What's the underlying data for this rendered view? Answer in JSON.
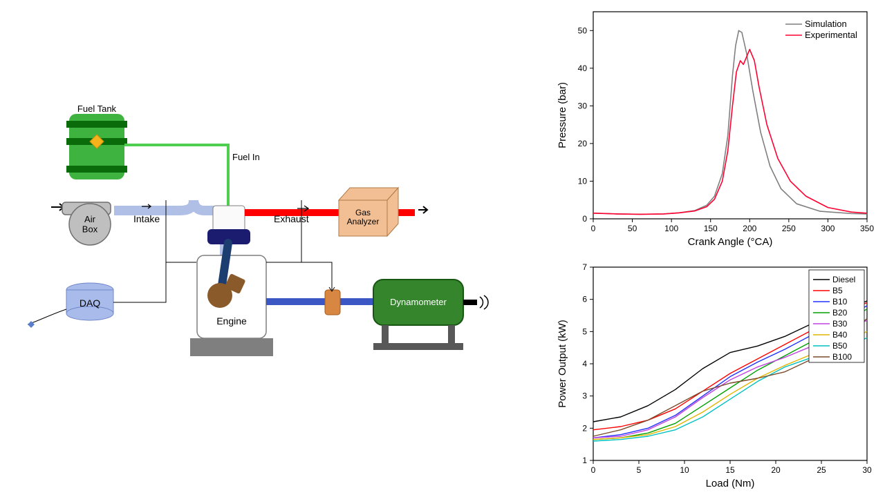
{
  "schematic": {
    "labels": {
      "fuel_tank": "Fuel Tank",
      "fuel_in": "Fuel In",
      "intake": "Intake",
      "exhaust": "Exhaust",
      "air_box": "Air\nBox",
      "gas_analyzer": "Gas\nAnalyzer",
      "daq": "DAQ",
      "engine": "Engine",
      "dynamometer": "Dynamometer"
    },
    "colors": {
      "fuel_tank_body": "#3fb33f",
      "fuel_tank_band": "#0a6b0a",
      "fuel_diamond": "#f5b21a",
      "fuel_line": "#4fcf4f",
      "intake_pipe": "#b0bfe6",
      "intake_pipe_border": "#7f8fbf",
      "exhaust_pipe": "#ff0000",
      "air_box": "#bfbfbf",
      "air_box_stroke": "#6f6f6f",
      "gas_analyzer": "#f2bf94",
      "gas_analyzer_stroke": "#b07a46",
      "daq": "#a9bbea",
      "daq_stroke": "#6f85c9",
      "engine_body": "#ffffff",
      "engine_stroke": "#7f7f7f",
      "engine_head": "#1b1b70",
      "piston_rod": "#1b3d70",
      "piston_crank": "#8a5a2a",
      "engine_base": "#7f7f7f",
      "drive_shaft": "#3b57c4",
      "coupling": "#d78742",
      "dyno_body": "#34852b",
      "dyno_stroke": "#175612",
      "dyno_stand": "#585858",
      "thin_wire": "#000000",
      "sensor_diamond": "#5a7dce"
    },
    "label_fontsize": 14
  },
  "pressure_chart": {
    "type": "line",
    "xlabel": "Crank Angle (°CA)",
    "ylabel": "Pressure (bar)",
    "label_fontsize": 15,
    "tick_fontsize": 12,
    "xlim": [
      0,
      350
    ],
    "ylim": [
      0,
      55
    ],
    "xticks": [
      0,
      50,
      100,
      150,
      200,
      250,
      300,
      350
    ],
    "yticks": [
      0,
      10,
      20,
      30,
      40,
      50
    ],
    "axis_color": "#000000",
    "background": "#ffffff",
    "legend_pos": "top-right",
    "legend_fontsize": 13,
    "series": [
      {
        "name": "Simulation",
        "color": "#7f7f7f",
        "width": 1.6,
        "x": [
          0,
          30,
          60,
          90,
          110,
          130,
          145,
          155,
          165,
          172,
          178,
          182,
          186,
          190,
          196,
          204,
          214,
          226,
          240,
          260,
          290,
          330,
          350
        ],
        "y": [
          1.5,
          1.3,
          1.2,
          1.3,
          1.6,
          2.2,
          3.6,
          6.0,
          12,
          22,
          38,
          46,
          50,
          49.5,
          44,
          34,
          23,
          14,
          8,
          4,
          2,
          1.4,
          1.3
        ]
      },
      {
        "name": "Experimental",
        "color": "#ff0030",
        "width": 1.6,
        "x": [
          0,
          30,
          60,
          90,
          110,
          130,
          145,
          155,
          165,
          172,
          178,
          183,
          188,
          192,
          196,
          200,
          206,
          212,
          222,
          236,
          252,
          272,
          300,
          330,
          350
        ],
        "y": [
          1.5,
          1.3,
          1.2,
          1.3,
          1.6,
          2.1,
          3.2,
          5.2,
          10,
          18,
          30,
          39,
          42,
          41,
          43,
          45,
          42,
          35,
          25,
          16,
          10,
          6,
          3,
          1.8,
          1.5
        ]
      }
    ]
  },
  "power_chart": {
    "type": "line",
    "xlabel": "Load (Nm)",
    "ylabel": "Power Output (kW)",
    "label_fontsize": 15,
    "tick_fontsize": 12,
    "xlim": [
      0,
      30
    ],
    "ylim": [
      1,
      7
    ],
    "xticks": [
      0,
      5,
      10,
      15,
      20,
      25,
      30
    ],
    "yticks": [
      1,
      2,
      3,
      4,
      5,
      6,
      7
    ],
    "axis_color": "#000000",
    "background": "#ffffff",
    "legend_pos": "top-right",
    "legend_fontsize": 12,
    "legend_border": "#000000",
    "series": [
      {
        "name": "Diesel",
        "color": "#000000",
        "width": 1.4,
        "x": [
          0,
          3,
          6,
          9,
          12,
          15,
          18,
          21,
          24,
          27,
          30
        ],
        "y": [
          2.2,
          2.35,
          2.7,
          3.2,
          3.85,
          4.35,
          4.55,
          4.85,
          5.25,
          5.6,
          5.95
        ]
      },
      {
        "name": "B5",
        "color": "#ff0000",
        "width": 1.4,
        "x": [
          0,
          3,
          6,
          9,
          12,
          15,
          18,
          21,
          24,
          27,
          30
        ],
        "y": [
          1.95,
          2.05,
          2.25,
          2.6,
          3.15,
          3.7,
          4.15,
          4.6,
          5.05,
          5.5,
          5.9
        ]
      },
      {
        "name": "B10",
        "color": "#2030ff",
        "width": 1.4,
        "x": [
          0,
          3,
          6,
          9,
          12,
          15,
          18,
          21,
          24,
          27,
          30
        ],
        "y": [
          1.7,
          1.8,
          2.0,
          2.4,
          3.0,
          3.6,
          4.05,
          4.45,
          4.9,
          5.35,
          5.8
        ]
      },
      {
        "name": "B20",
        "color": "#00a000",
        "width": 1.4,
        "x": [
          0,
          3,
          6,
          9,
          12,
          15,
          18,
          21,
          24,
          27,
          30
        ],
        "y": [
          1.65,
          1.7,
          1.85,
          2.15,
          2.7,
          3.25,
          3.8,
          4.25,
          4.7,
          5.2,
          5.7
        ]
      },
      {
        "name": "B30",
        "color": "#c040e0",
        "width": 1.4,
        "x": [
          0,
          3,
          6,
          9,
          12,
          15,
          18,
          21,
          24,
          27,
          30
        ],
        "y": [
          1.7,
          1.75,
          1.95,
          2.35,
          2.95,
          3.5,
          3.9,
          4.2,
          4.55,
          4.95,
          5.35
        ]
      },
      {
        "name": "B40",
        "color": "#e0b500",
        "width": 1.4,
        "x": [
          0,
          3,
          6,
          9,
          12,
          15,
          18,
          21,
          24,
          27,
          30
        ],
        "y": [
          1.65,
          1.7,
          1.8,
          2.05,
          2.5,
          3.05,
          3.55,
          3.95,
          4.3,
          4.65,
          5.0
        ]
      },
      {
        "name": "B50",
        "color": "#00c0c0",
        "width": 1.4,
        "x": [
          0,
          3,
          6,
          9,
          12,
          15,
          18,
          21,
          24,
          27,
          30
        ],
        "y": [
          1.6,
          1.65,
          1.75,
          1.95,
          2.35,
          2.9,
          3.45,
          3.9,
          4.2,
          4.5,
          4.8
        ]
      },
      {
        "name": "B100",
        "color": "#7a4a2a",
        "width": 1.4,
        "x": [
          0,
          3,
          6,
          9,
          12,
          15,
          18,
          21,
          24,
          27,
          30
        ],
        "y": [
          1.75,
          1.95,
          2.25,
          2.7,
          3.15,
          3.4,
          3.55,
          3.75,
          4.15,
          4.75,
          5.4
        ]
      }
    ]
  }
}
